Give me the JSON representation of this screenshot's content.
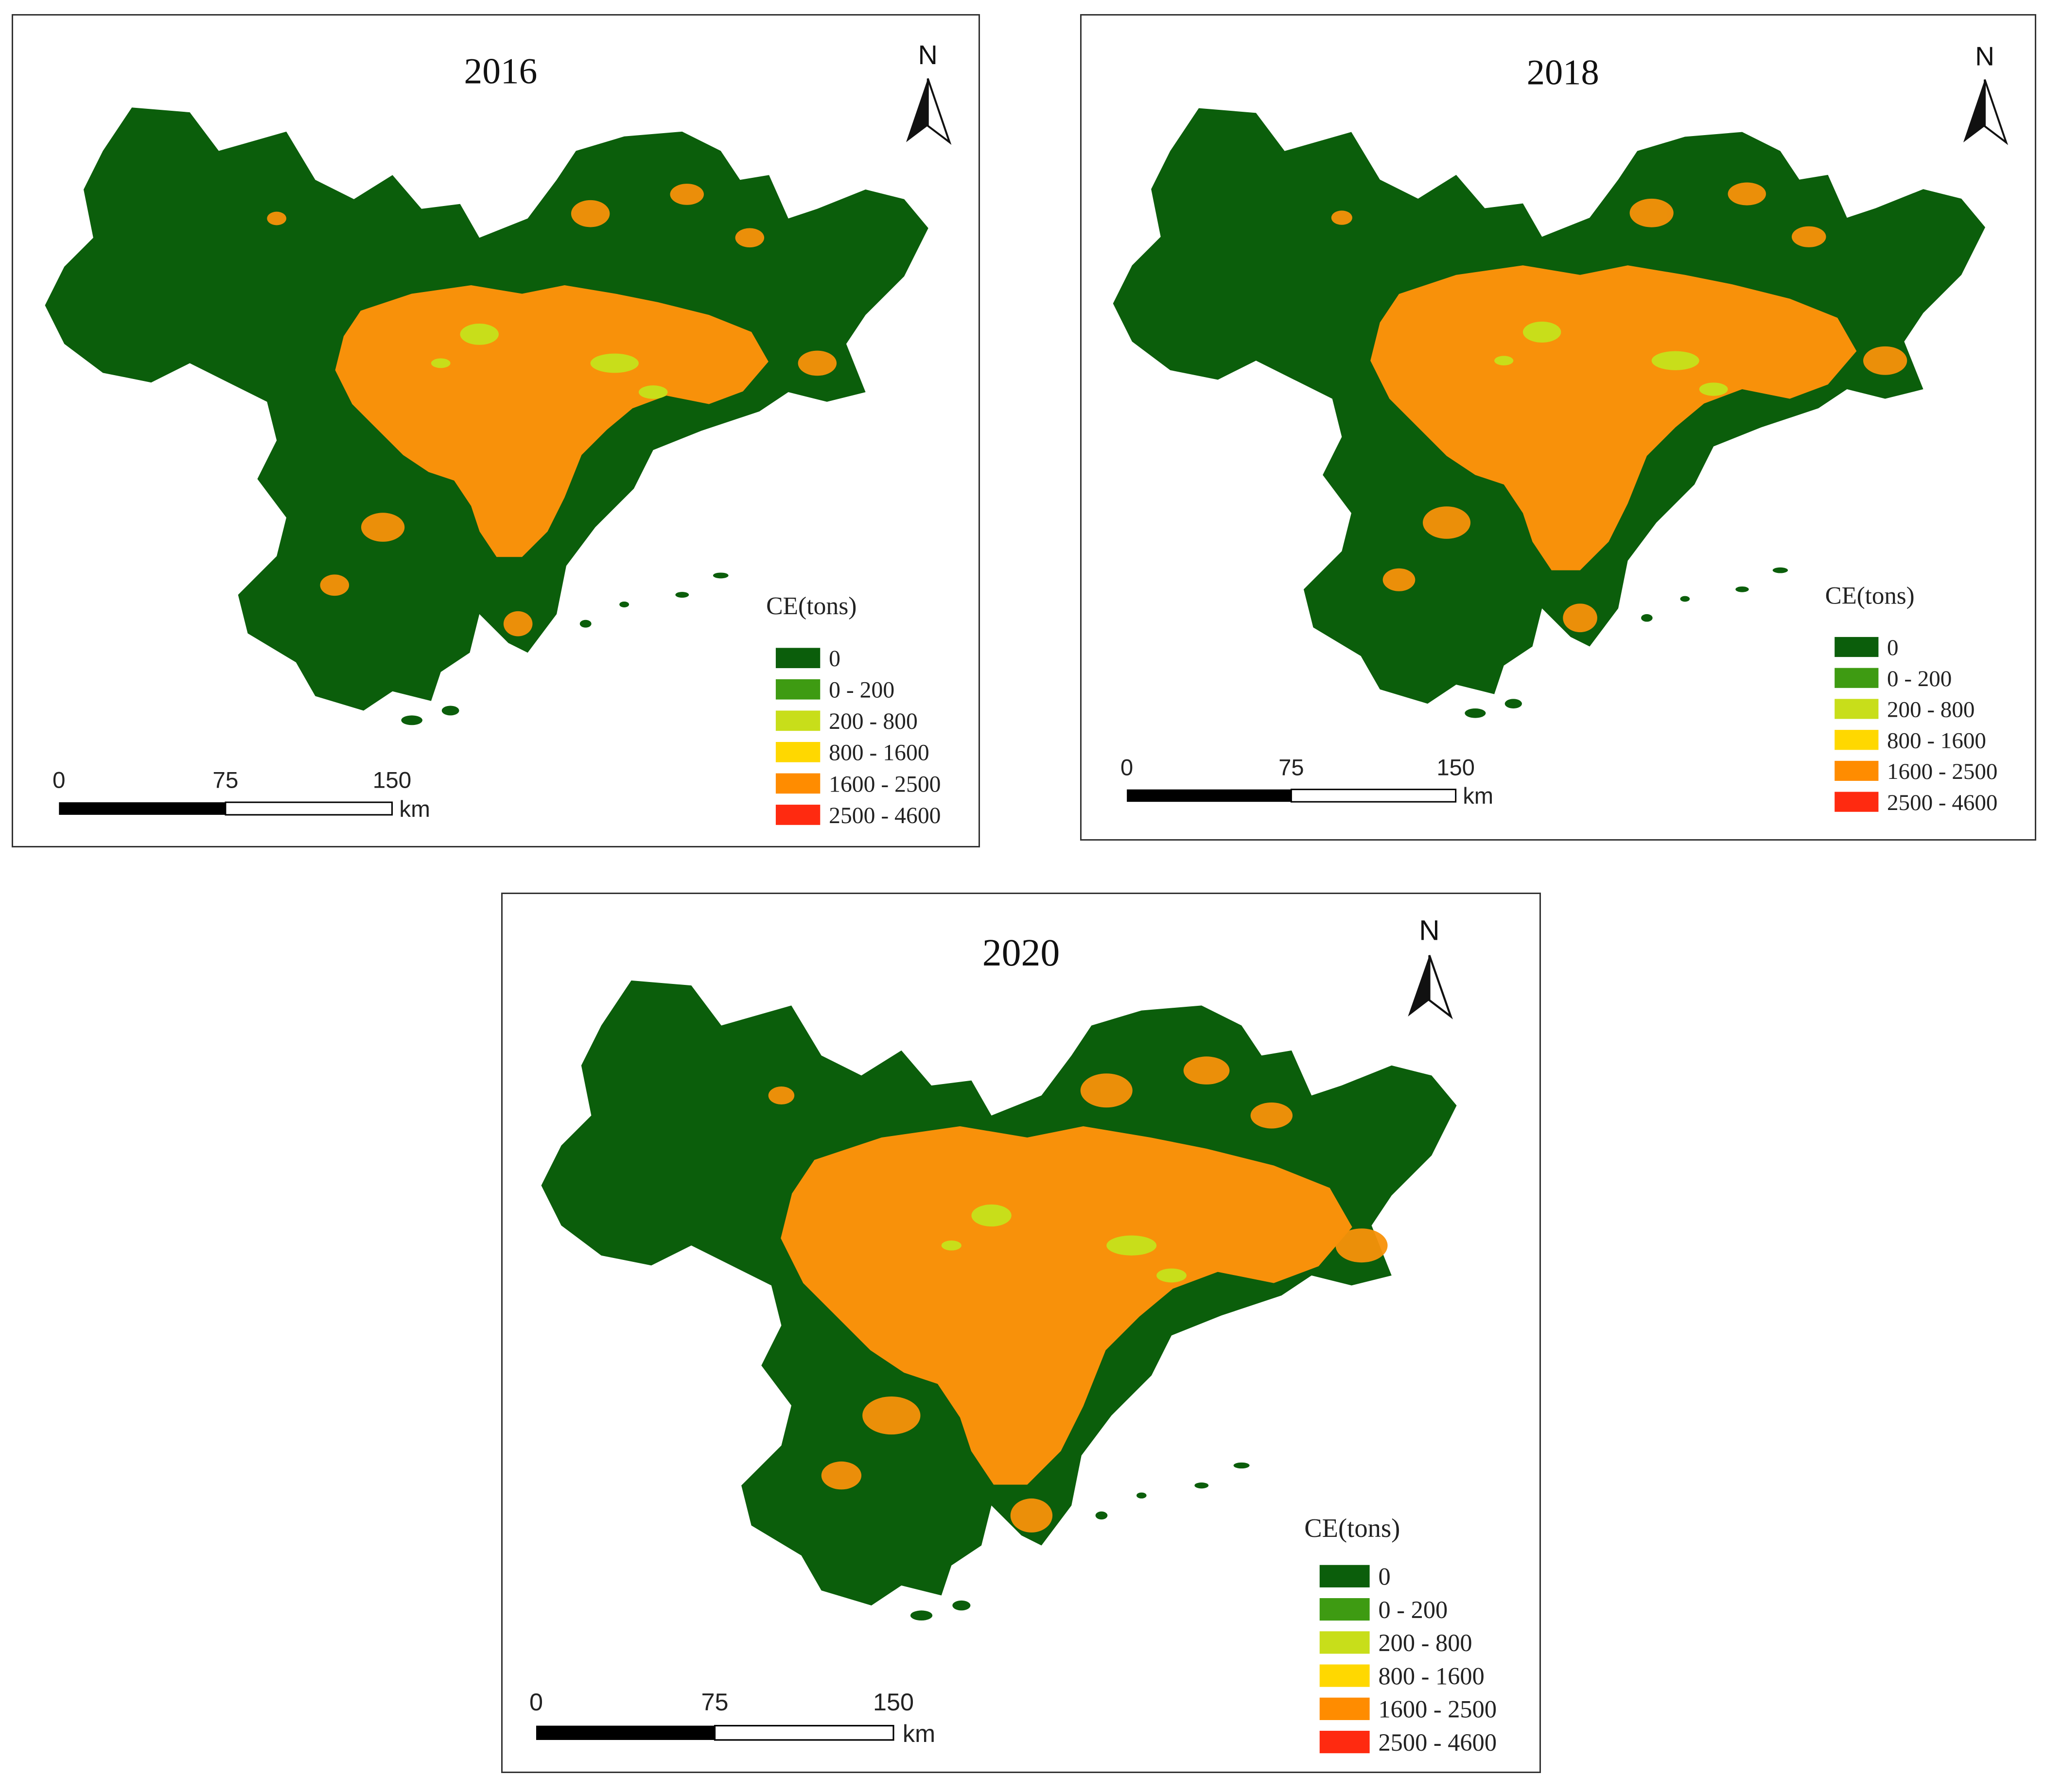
{
  "colors": {
    "c0": "#0b5e0b",
    "c1": "#3e9b12",
    "c2": "#c8de1a",
    "c3": "#ffd800",
    "c4": "#ff8c00",
    "c5": "#ff2a10",
    "urban": "#f8910a"
  },
  "north_label": "N",
  "legend": {
    "title": "CE(tons)",
    "items": [
      "0",
      "0 - 200",
      "200 - 800",
      "800 - 1600",
      "1600 - 2500",
      "2500 - 4600"
    ]
  },
  "scale": {
    "ticks": [
      "0",
      "75",
      "150"
    ],
    "unit": "km"
  },
  "maps": [
    {
      "year": "2016",
      "urban_extent": 0.88
    },
    {
      "year": "2018",
      "urban_extent": 1.0
    },
    {
      "year": "2020",
      "urban_extent": 1.12
    }
  ]
}
